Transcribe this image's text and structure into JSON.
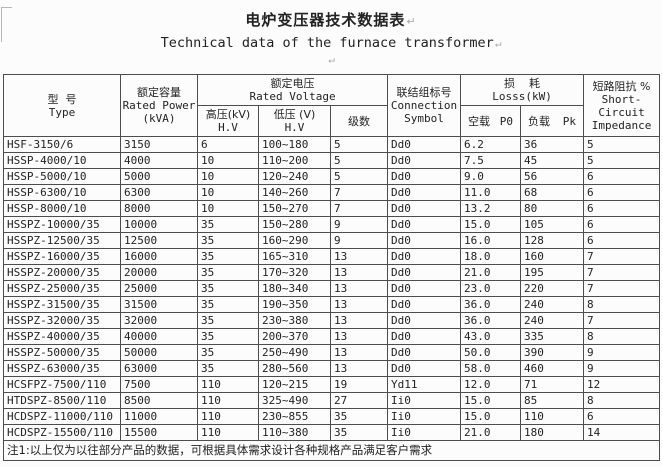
{
  "page": {
    "title_zh": "电炉变压器技术数据表",
    "title_en": "Technical data of the furnace transformer",
    "paragraph_mark": "↵"
  },
  "colors": {
    "background": "#fcfcfc",
    "text": "#222222",
    "border": "#4d4d4d",
    "paragraph_mark": "#a8a8a8"
  },
  "table": {
    "header": {
      "type_zh": "型  号",
      "type_en": "Type",
      "rated_power_zh": "额定容量",
      "rated_power_en": "Rated Power",
      "rated_power_unit": "(kVA)",
      "rated_voltage_zh": "额定电压",
      "rated_voltage_en": "Rated Voltage",
      "hv_zh": "高压(kV)",
      "hv_en": "H.V",
      "lv_zh": "低压 (V)",
      "lv_en": "H.V",
      "steps_zh": "级数",
      "connection_zh": "联结组标号",
      "connection_en1": "Connection",
      "connection_en2": "Symbol",
      "loss_zh": "损    耗",
      "loss_en": "Losss(kW)",
      "p0_zh": "空载",
      "p0_sym": "P0",
      "pk_zh": "负载",
      "pk_sym": "Pk",
      "impedance_zh": "短路阻抗 %",
      "impedance_en1": "Short-",
      "impedance_en2": "Circuit",
      "impedance_en3": "Impedance"
    },
    "rows": [
      [
        "HSF-3150/6",
        "3150",
        "6",
        "100~180",
        "5",
        "Dd0",
        "6.2",
        "36",
        "5"
      ],
      [
        "HSSP-4000/10",
        "4000",
        "10",
        "110~200",
        "5",
        "Dd0",
        "7.5",
        "45",
        "5"
      ],
      [
        "HSSP-5000/10",
        "5000",
        "10",
        "120~240",
        "5",
        "Dd0",
        "9.0",
        "56",
        "6"
      ],
      [
        "HSSP-6300/10",
        "6300",
        "10",
        "140~260",
        "7",
        "Dd0",
        "11.0",
        "68",
        "6"
      ],
      [
        "HSSP-8000/10",
        "8000",
        "10",
        "150~270",
        "7",
        "Dd0",
        "13.2",
        "80",
        "6"
      ],
      [
        "HSSPZ-10000/35",
        "10000",
        "35",
        "150~280",
        "9",
        "Dd0",
        "15.0",
        "105",
        "6"
      ],
      [
        "HSSPZ-12500/35",
        "12500",
        "35",
        "160~290",
        "9",
        "Dd0",
        "16.0",
        "128",
        "6"
      ],
      [
        "HSSPZ-16000/35",
        "16000",
        "35",
        "165~310",
        "13",
        "Dd0",
        "18.0",
        "160",
        "7"
      ],
      [
        "HSSPZ-20000/35",
        "20000",
        "35",
        "170~320",
        "13",
        "Dd0",
        "21.0",
        "195",
        "7"
      ],
      [
        "HSSPZ-25000/35",
        "25000",
        "35",
        "180~340",
        "13",
        "Dd0",
        "23.0",
        "220",
        "7"
      ],
      [
        "HSSPZ-31500/35",
        "31500",
        "35",
        "190~350",
        "13",
        "Dd0",
        "36.0",
        "240",
        "8"
      ],
      [
        "HSSPZ-32000/35",
        "32000",
        "35",
        "230~380",
        "13",
        "Dd0",
        "36.0",
        "240",
        "7"
      ],
      [
        "HSSPZ-40000/35",
        "40000",
        "35",
        "200~370",
        "13",
        "Dd0",
        "43.0",
        "335",
        "8"
      ],
      [
        "HSSPZ-50000/35",
        "50000",
        "35",
        "250~490",
        "13",
        "Dd0",
        "50.0",
        "390",
        "9"
      ],
      [
        "HSSPZ-63000/35",
        "63000",
        "35",
        "280~560",
        "13",
        "Dd0",
        "58.0",
        "460",
        "9"
      ],
      [
        "HCSFPZ-7500/110",
        "7500",
        "110",
        "120~215",
        "19",
        "Yd11",
        "12.0",
        "71",
        "12"
      ],
      [
        "HTDSPZ-8500/110",
        "8500",
        "110",
        "325~490",
        "27",
        "Ii0",
        "15.0",
        "85",
        "8"
      ],
      [
        "HCDSPZ-11000/110",
        "11000",
        "110",
        "230~855",
        "35",
        "Ii0",
        "15.0",
        "110",
        "6"
      ],
      [
        "HCDSPZ-15500/110",
        "15500",
        "110",
        "110~380",
        "35",
        "Ii0",
        "21.0",
        "180",
        "14"
      ]
    ],
    "footnote": "注1:以上仅为以往部分产品的数据，可根据具体需求设计各种规格产品满足客户需求"
  }
}
